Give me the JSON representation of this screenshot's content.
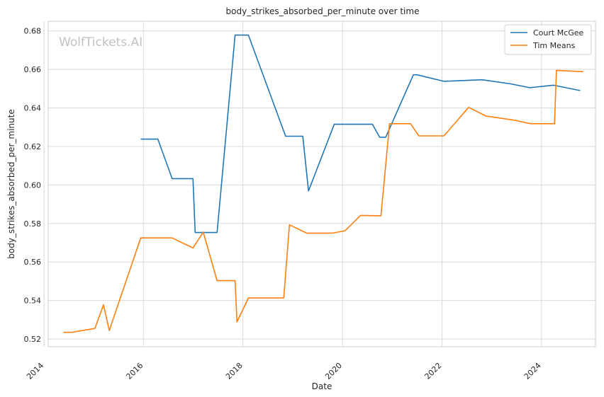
{
  "chart_data": {
    "type": "line",
    "title": "body_strikes_absorbed_per_minute over time",
    "xlabel": "Date",
    "ylabel": "body_strikes_absorbed_per_minute",
    "watermark": "WolfTickets.AI",
    "x_axis_type": "date",
    "xlim": [
      "2014-02-01",
      "2025-02-01"
    ],
    "ylim": [
      0.516,
      0.685
    ],
    "x_ticks": [
      "2014",
      "2016",
      "2018",
      "2020",
      "2022",
      "2024"
    ],
    "y_ticks": [
      "0.52",
      "0.54",
      "0.56",
      "0.58",
      "0.60",
      "0.62",
      "0.64",
      "0.66",
      "0.68"
    ],
    "grid": true,
    "legend_position": "top-right",
    "series": [
      {
        "name": "Court McGee",
        "color": "#1f77b4",
        "points": [
          {
            "x": "2015-12-12",
            "y": 0.6238
          },
          {
            "x": "2016-04-16",
            "y": 0.6238
          },
          {
            "x": "2016-07-30",
            "y": 0.6033
          },
          {
            "x": "2016-12-30",
            "y": 0.6033
          },
          {
            "x": "2017-01-15",
            "y": 0.5753
          },
          {
            "x": "2017-06-25",
            "y": 0.5753
          },
          {
            "x": "2017-11-04",
            "y": 0.6778
          },
          {
            "x": "2018-02-10",
            "y": 0.6778
          },
          {
            "x": "2018-11-10",
            "y": 0.6253
          },
          {
            "x": "2019-03-16",
            "y": 0.6253
          },
          {
            "x": "2019-04-27",
            "y": 0.5969
          },
          {
            "x": "2019-11-02",
            "y": 0.6315
          },
          {
            "x": "2020-08-08",
            "y": 0.6315
          },
          {
            "x": "2020-09-30",
            "y": 0.6248
          },
          {
            "x": "2020-11-14",
            "y": 0.6248
          },
          {
            "x": "2021-06-05",
            "y": 0.6572
          },
          {
            "x": "2021-07-01",
            "y": 0.6572
          },
          {
            "x": "2022-01-15",
            "y": 0.6538
          },
          {
            "x": "2022-10-22",
            "y": 0.6546
          },
          {
            "x": "2023-05-20",
            "y": 0.6525
          },
          {
            "x": "2023-10-07",
            "y": 0.6505
          },
          {
            "x": "2024-03-30",
            "y": 0.6518
          },
          {
            "x": "2024-10-12",
            "y": 0.649
          }
        ]
      },
      {
        "name": "Tim Means",
        "color": "#ff7f0e",
        "points": [
          {
            "x": "2014-05-24",
            "y": 0.5235
          },
          {
            "x": "2014-07-26",
            "y": 0.5235
          },
          {
            "x": "2015-01-10",
            "y": 0.5255
          },
          {
            "x": "2015-03-14",
            "y": 0.5378
          },
          {
            "x": "2015-04-25",
            "y": 0.5244
          },
          {
            "x": "2015-12-12",
            "y": 0.5725
          },
          {
            "x": "2016-07-30",
            "y": 0.5725
          },
          {
            "x": "2016-12-30",
            "y": 0.5673
          },
          {
            "x": "2017-03-15",
            "y": 0.5755
          },
          {
            "x": "2017-06-25",
            "y": 0.5503
          },
          {
            "x": "2017-11-04",
            "y": 0.5503
          },
          {
            "x": "2017-11-18",
            "y": 0.5289
          },
          {
            "x": "2018-02-10",
            "y": 0.5413
          },
          {
            "x": "2018-10-27",
            "y": 0.5413
          },
          {
            "x": "2018-12-08",
            "y": 0.5793
          },
          {
            "x": "2019-04-13",
            "y": 0.575
          },
          {
            "x": "2019-10-20",
            "y": 0.575
          },
          {
            "x": "2020-01-20",
            "y": 0.5762
          },
          {
            "x": "2020-05-13",
            "y": 0.5842
          },
          {
            "x": "2020-10-10",
            "y": 0.584
          },
          {
            "x": "2020-12-12",
            "y": 0.6318
          },
          {
            "x": "2021-05-15",
            "y": 0.6318
          },
          {
            "x": "2021-07-15",
            "y": 0.6255
          },
          {
            "x": "2022-01-15",
            "y": 0.6255
          },
          {
            "x": "2022-07-16",
            "y": 0.6403
          },
          {
            "x": "2022-11-19",
            "y": 0.6358
          },
          {
            "x": "2023-06-03",
            "y": 0.6338
          },
          {
            "x": "2023-10-14",
            "y": 0.6318
          },
          {
            "x": "2024-04-06",
            "y": 0.6318
          },
          {
            "x": "2024-04-20",
            "y": 0.6595
          },
          {
            "x": "2024-11-02",
            "y": 0.6588
          }
        ]
      }
    ]
  }
}
